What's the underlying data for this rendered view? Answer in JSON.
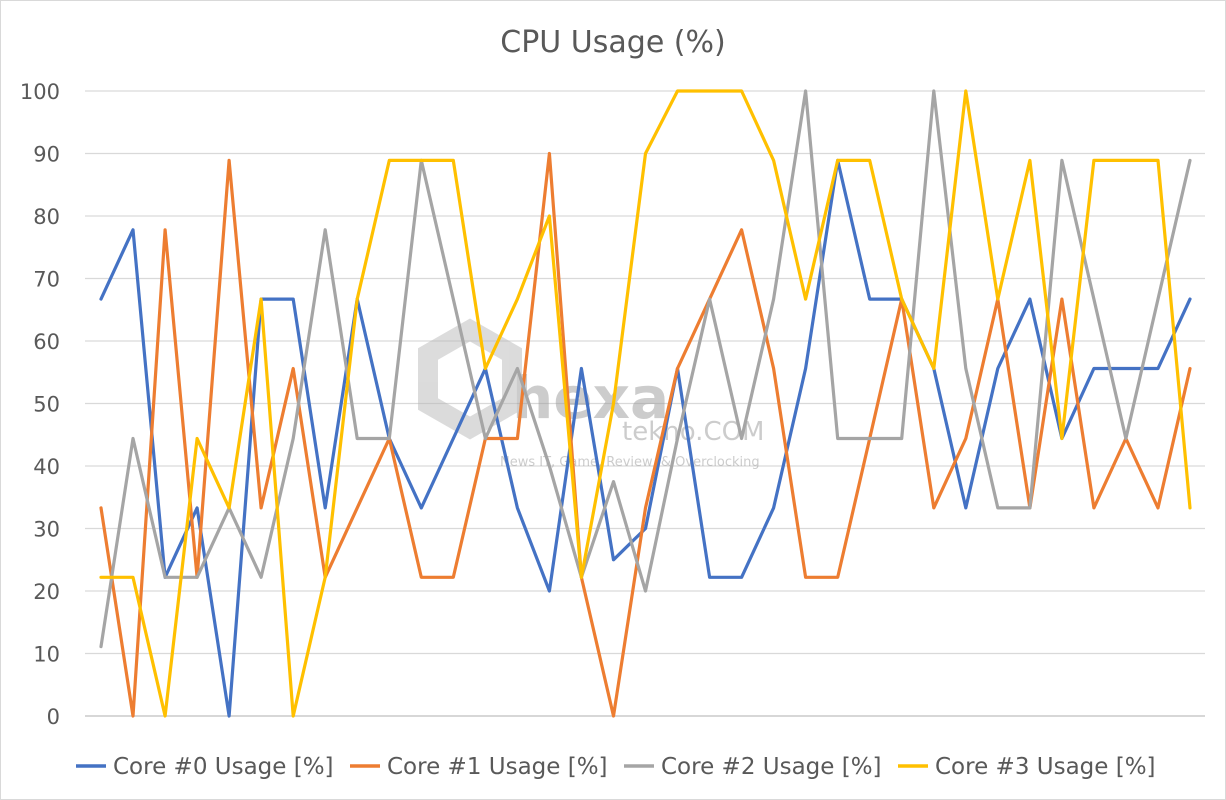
{
  "chart_data": {
    "type": "line",
    "title": "CPU Usage (%)",
    "xlabel": "",
    "ylabel": "",
    "ylim": [
      0,
      100
    ],
    "yticks": [
      0,
      10,
      20,
      30,
      40,
      50,
      60,
      70,
      80,
      90,
      100
    ],
    "grid": true,
    "legend_position": "bottom",
    "x": [
      1,
      2,
      3,
      4,
      5,
      6,
      7,
      8,
      9,
      10,
      11,
      12,
      13,
      14,
      15,
      16,
      17,
      18,
      19,
      20,
      21,
      22,
      23,
      24,
      25,
      26,
      27,
      28,
      29,
      30,
      31,
      32,
      33,
      34,
      35
    ],
    "series": [
      {
        "name": "Core #0 Usage [%]",
        "color": "#4472C4",
        "values": [
          66.7,
          77.8,
          22.2,
          33.3,
          0,
          66.7,
          66.7,
          33.3,
          66.7,
          44.4,
          33.3,
          44.4,
          55.6,
          33.3,
          20,
          55.6,
          25,
          30,
          55.6,
          22.2,
          22.2,
          33.3,
          55.6,
          88.9,
          66.7,
          66.7,
          55.6,
          33.3,
          55.6,
          66.7,
          44.4,
          55.6,
          55.6,
          55.6,
          66.7
        ]
      },
      {
        "name": "Core #1 Usage [%]",
        "color": "#ED7D31",
        "values": [
          33.3,
          0,
          77.8,
          22.2,
          88.9,
          33.3,
          55.6,
          22.2,
          33.3,
          44.4,
          22.2,
          22.2,
          44.4,
          44.4,
          90,
          22.2,
          0,
          33.3,
          55.6,
          66.7,
          77.8,
          55.6,
          22.2,
          22.2,
          44.4,
          66.7,
          33.3,
          44.4,
          66.7,
          33.3,
          66.7,
          33.3,
          44.4,
          33.3,
          55.6
        ]
      },
      {
        "name": "Core #2 Usage [%]",
        "color": "#A5A5A5",
        "values": [
          11.1,
          44.4,
          22.2,
          22.2,
          33.3,
          22.2,
          44.4,
          77.8,
          44.4,
          44.4,
          88.9,
          66.7,
          44.4,
          55.6,
          40,
          22.2,
          37.5,
          20,
          44.4,
          66.7,
          44.4,
          66.7,
          100,
          44.4,
          44.4,
          44.4,
          100,
          55.6,
          33.3,
          33.3,
          88.9,
          66.7,
          44.4,
          66.7,
          88.9
        ]
      },
      {
        "name": "Core #3 Usage [%]",
        "color": "#FFC000",
        "values": [
          22.2,
          22.2,
          0,
          44.4,
          33.3,
          66.7,
          0,
          22.2,
          66.7,
          88.9,
          88.9,
          88.9,
          55.6,
          66.7,
          80,
          22.2,
          50,
          90,
          100,
          100,
          100,
          88.9,
          66.7,
          88.9,
          88.9,
          66.7,
          55.6,
          100,
          66.7,
          88.9,
          44.4,
          88.9,
          88.9,
          88.9,
          33.3
        ]
      }
    ]
  },
  "watermark": {
    "brand": "hexa",
    "domain": "tekno.COM",
    "tagline": "News IT, Game, Review, & Overclocking"
  }
}
